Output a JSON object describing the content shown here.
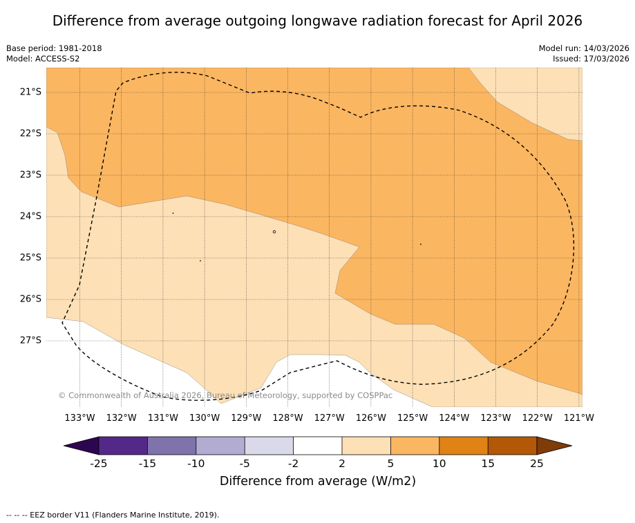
{
  "title": "Difference from average outgoing longwave radiation forecast for April 2026",
  "meta": {
    "base_period": "Base period: 1981-2018",
    "model": "Model: ACCESS-S2",
    "model_run": "Model run: 14/03/2026",
    "issued": "Issued: 17/03/2026"
  },
  "map": {
    "latitude_labels": [
      "21°S",
      "22°S",
      "23°S",
      "24°S",
      "25°S",
      "26°S",
      "27°S"
    ],
    "longitude_labels": [
      "133°W",
      "132°W",
      "131°W",
      "130°W",
      "129°W",
      "128°W",
      "127°W",
      "126°W",
      "125°W",
      "124°W",
      "123°W",
      "122°W",
      "121°W"
    ],
    "copyright": "© Commonwealth of Australia 2026, Bureau of Meteorology, supported by COSPPac",
    "colors": {
      "band_2_5": "#fde0b6",
      "band_5_10": "#fbb661",
      "grid": "#333333",
      "eez": "#000000"
    }
  },
  "colorbar": {
    "ticks": [
      "-25",
      "-15",
      "-10",
      "-5",
      "-2",
      "2",
      "5",
      "10",
      "15",
      "25"
    ],
    "title": "Difference from average (W/m2)",
    "segments": [
      {
        "range": "below -25",
        "color": "#2d0652"
      },
      {
        "range": "-25 to -15",
        "color": "#542888"
      },
      {
        "range": "-15 to -10",
        "color": "#8073ac"
      },
      {
        "range": "-10 to -5",
        "color": "#b2abd2"
      },
      {
        "range": "-5 to -2",
        "color": "#d9d9ea"
      },
      {
        "range": "-2 to 2",
        "color": "#ffffff"
      },
      {
        "range": "2 to 5",
        "color": "#fde0b6"
      },
      {
        "range": "5 to 10",
        "color": "#fbb661"
      },
      {
        "range": "10 to 15",
        "color": "#e08214"
      },
      {
        "range": "15 to 25",
        "color": "#b35806"
      },
      {
        "range": "above 25",
        "color": "#7f3b08"
      }
    ]
  },
  "footer": "--  --  -- EEZ border V11 (Flanders Marine Institute, 2019)."
}
